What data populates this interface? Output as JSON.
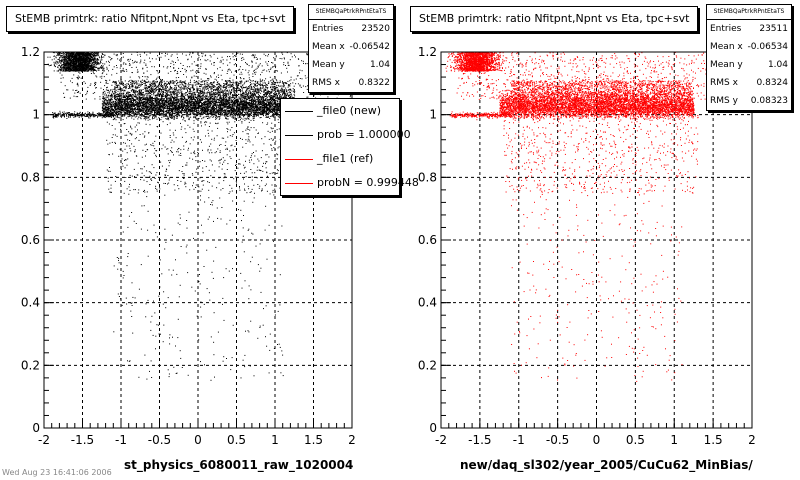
{
  "left_pad": {
    "title": "StEMB primtrk: ratio Nfitpnt,Npnt vs Eta, tpc+svt",
    "stats": {
      "name": "StEMBQaPtrkRPntEtaTS",
      "rows": [
        {
          "label": "Entries",
          "value": "23520"
        },
        {
          "label": "Mean x",
          "value": "-0.06542"
        },
        {
          "label": "Mean y",
          "value": "1.04"
        },
        {
          "label": "RMS x",
          "value": "0.8322"
        }
      ]
    },
    "legend": [
      {
        "label": "_file0 (new)",
        "color": "#000000"
      },
      {
        "label": "prob = 1.000000",
        "color": "#000000"
      },
      {
        "label": "_file1 (ref)",
        "color": "#ff0000"
      },
      {
        "label": "probN = 0.999448",
        "color": "#ff0000"
      }
    ],
    "xlabel": "st_physics_6080011_raw_1020004"
  },
  "right_pad": {
    "title": "StEMB primtrk: ratio Nfitpnt,Npnt vs Eta, tpc+svt",
    "stats": {
      "name": "StEMBQaPtrkRPntEtaTS",
      "rows": [
        {
          "label": "Entries",
          "value": "23511"
        },
        {
          "label": "Mean x",
          "value": "-0.06534"
        },
        {
          "label": "Mean y",
          "value": "1.04"
        },
        {
          "label": "RMS x",
          "value": "0.8324"
        },
        {
          "label": "RMS y",
          "value": "0.08323"
        }
      ]
    },
    "xlabel": "new/daq_sl302/year_2005/CuCu62_MinBias/"
  },
  "footnote": "Wed Aug 23 16:41:06 2006",
  "chart_data": [
    {
      "type": "scatter",
      "title": "StEMB primtrk: ratio Nfitpnt,Npnt vs Eta, tpc+svt",
      "xlabel": "st_physics_6080011_raw_1020004",
      "xlim": [
        -2,
        2
      ],
      "ylim": [
        0,
        1.2
      ],
      "x_ticks": [
        "-2",
        "-1.5",
        "-1",
        "-0.5",
        "0",
        "0.5",
        "1",
        "1.5",
        "2"
      ],
      "y_ticks": [
        "0",
        "0.2",
        "0.4",
        "0.6",
        "0.8",
        "1",
        "1.2"
      ],
      "grid": true,
      "legend_position": "top-right",
      "color": "#000000",
      "entries": 23520,
      "mean_x": -0.06542,
      "mean_y": 1.04,
      "rms_x": 0.8322,
      "series": [
        {
          "name": "_file0 (new)",
          "description": "dense band near y=1 for |x|<1.2; dense cluster near y=1.1-1.2 at x=-1.4 and x=1.6; sparse tail down to y~0.1"
        }
      ]
    },
    {
      "type": "scatter",
      "title": "StEMB primtrk: ratio Nfitpnt,Npnt vs Eta, tpc+svt",
      "xlabel": "new/daq_sl302/year_2005/CuCu62_MinBias/",
      "xlim": [
        -2,
        2
      ],
      "ylim": [
        0,
        1.2
      ],
      "x_ticks": [
        "-2",
        "-1.5",
        "-1",
        "-0.5",
        "0",
        "0.5",
        "1",
        "1.5",
        "2"
      ],
      "y_ticks": [
        "0",
        "0.2",
        "0.4",
        "0.6",
        "0.8",
        "1",
        "1.2"
      ],
      "grid": true,
      "color": "#ff0000",
      "entries": 23511,
      "mean_x": -0.06534,
      "mean_y": 1.04,
      "rms_x": 0.8324,
      "rms_y": 0.08323,
      "series": [
        {
          "name": "_file1 (ref)",
          "description": "same distribution as left pad, drawn in red"
        }
      ]
    }
  ]
}
